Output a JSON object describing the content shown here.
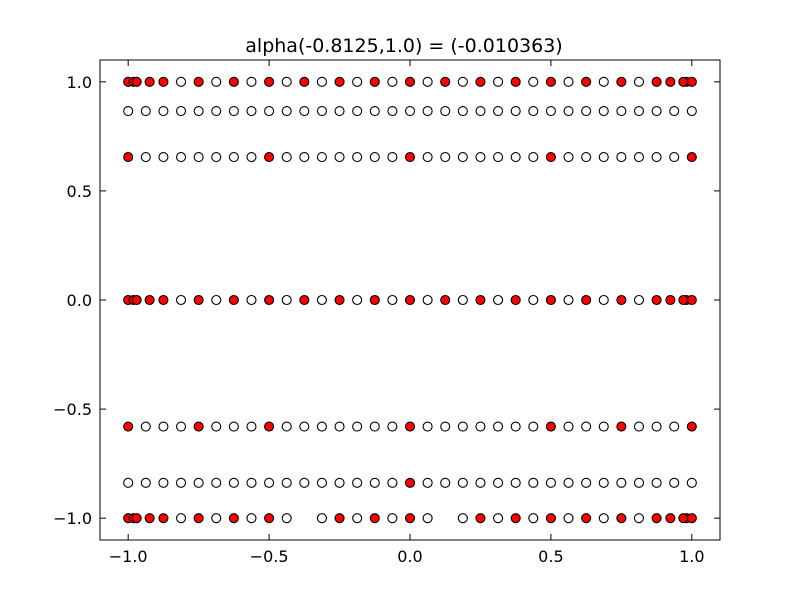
{
  "chart_data": {
    "type": "scatter",
    "title": "alpha(-0.8125,1.0) =  (-0.010363)",
    "xlabel": "",
    "ylabel": "",
    "xlim": [
      -1.1,
      1.1
    ],
    "ylim": [
      -1.1,
      1.1
    ],
    "xticks": [
      -1.0,
      -0.5,
      0.0,
      0.5,
      1.0
    ],
    "xtick_labels": [
      "−1.0",
      "−0.5",
      "0.0",
      "0.5",
      "1.0"
    ],
    "yticks": [
      -1.0,
      -0.5,
      0.0,
      0.5,
      1.0
    ],
    "ytick_labels": [
      "−1.0",
      "−0.5",
      "0.0",
      "0.5",
      "1.0"
    ],
    "grid": false,
    "legend": "none",
    "colors": {
      "filled": "#ff0000",
      "open": "#ffffff",
      "edge": "#000000"
    },
    "rows": [
      {
        "y": 1.0,
        "open_x": [
          -0.8125,
          -0.6875,
          -0.5625,
          -0.4375,
          -0.3125,
          -0.1875,
          -0.0625,
          0.0625,
          0.1875,
          0.3125,
          0.4375,
          0.5625,
          0.6875,
          0.8125
        ],
        "filled_x": [
          -1.0,
          -0.9808,
          -0.9239,
          -0.875,
          -0.75,
          -0.625,
          -0.5,
          -0.375,
          -0.25,
          -0.125,
          0.0,
          0.125,
          0.25,
          0.375,
          0.5,
          0.625,
          0.75,
          0.875,
          0.9239,
          0.9808,
          1.0,
          -0.97,
          0.97
        ]
      },
      {
        "y": 0.866,
        "open_x": [
          -1.0,
          -0.9375,
          -0.875,
          -0.8125,
          -0.75,
          -0.6875,
          -0.625,
          -0.5625,
          -0.5,
          -0.4375,
          -0.375,
          -0.3125,
          -0.25,
          -0.1875,
          -0.125,
          -0.0625,
          0.0,
          0.0625,
          0.125,
          0.1875,
          0.25,
          0.3125,
          0.375,
          0.4375,
          0.5,
          0.5625,
          0.625,
          0.6875,
          0.75,
          0.8125,
          0.875,
          0.9375,
          1.0
        ],
        "filled_x": []
      },
      {
        "y": 0.655,
        "open_x": [
          -0.9375,
          -0.875,
          -0.8125,
          -0.75,
          -0.6875,
          -0.625,
          -0.5625,
          -0.4375,
          -0.375,
          -0.3125,
          -0.25,
          -0.1875,
          -0.125,
          -0.0625,
          0.0625,
          0.125,
          0.1875,
          0.25,
          0.3125,
          0.375,
          0.4375,
          0.5625,
          0.625,
          0.6875,
          0.75,
          0.8125,
          0.875,
          0.9375
        ],
        "filled_x": [
          -1.0,
          -0.5,
          0.0,
          0.5,
          1.0
        ]
      },
      {
        "y": 0.0,
        "open_x": [
          -0.8125,
          -0.6875,
          -0.5625,
          -0.4375,
          -0.3125,
          -0.1875,
          -0.0625,
          0.0625,
          0.1875,
          0.3125,
          0.4375,
          0.5625,
          0.6875,
          0.8125
        ],
        "filled_x": [
          -1.0,
          -0.9808,
          -0.9239,
          -0.875,
          -0.75,
          -0.625,
          -0.5,
          -0.375,
          -0.25,
          -0.125,
          0.0,
          0.125,
          0.25,
          0.375,
          0.5,
          0.625,
          0.75,
          0.875,
          0.9239,
          0.9808,
          1.0,
          -0.97,
          0.97
        ]
      },
      {
        "y": -0.58,
        "open_x": [
          -0.9375,
          -0.875,
          -0.8125,
          -0.6875,
          -0.625,
          -0.5625,
          -0.4375,
          -0.375,
          -0.3125,
          -0.25,
          -0.1875,
          -0.125,
          -0.0625,
          0.0625,
          0.125,
          0.1875,
          0.25,
          0.3125,
          0.375,
          0.4375,
          0.5625,
          0.625,
          0.6875,
          0.8125,
          0.875,
          0.9375
        ],
        "filled_x": [
          -1.0,
          -0.75,
          -0.5,
          0.0,
          0.5,
          0.75,
          1.0
        ]
      },
      {
        "y": -0.838,
        "open_x": [
          -1.0,
          -0.9375,
          -0.875,
          -0.8125,
          -0.75,
          -0.6875,
          -0.625,
          -0.5625,
          -0.5,
          -0.4375,
          -0.375,
          -0.3125,
          -0.25,
          -0.1875,
          -0.125,
          -0.0625,
          0.0625,
          0.125,
          0.1875,
          0.25,
          0.3125,
          0.375,
          0.4375,
          0.5,
          0.5625,
          0.625,
          0.6875,
          0.75,
          0.8125,
          0.875,
          0.9375,
          1.0
        ],
        "filled_x": [
          0.0
        ]
      },
      {
        "y": -1.0,
        "open_x": [
          -0.8125,
          -0.6875,
          -0.5625,
          -0.4375,
          -0.3125,
          -0.1875,
          -0.0625,
          0.0625,
          0.1875,
          0.3125,
          0.4375,
          0.5625,
          0.6875,
          0.8125
        ],
        "filled_x": [
          -1.0,
          -0.9808,
          -0.9239,
          -0.875,
          -0.75,
          -0.625,
          -0.5,
          -0.25,
          -0.125,
          0.0,
          0.25,
          0.375,
          0.5,
          0.625,
          0.75,
          0.875,
          0.9239,
          0.9808,
          1.0,
          -0.97,
          0.97
        ]
      }
    ]
  }
}
